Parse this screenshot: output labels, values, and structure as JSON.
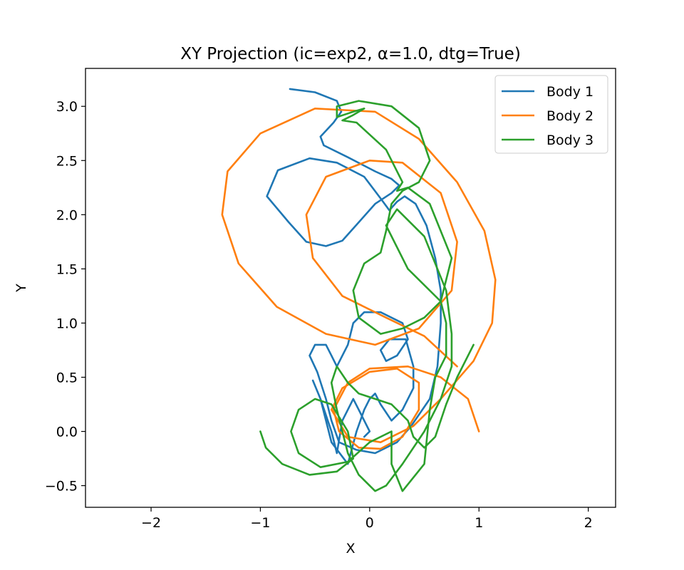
{
  "chart_data": {
    "type": "line",
    "title": "XY Projection (ic=exp2, α=1.0, dtg=True)",
    "xlabel": "X",
    "ylabel": "Y",
    "xlim": [
      -2.6,
      2.25
    ],
    "ylim": [
      -0.7,
      3.35
    ],
    "xticks": [
      -2,
      -1,
      0,
      1,
      2
    ],
    "xtick_labels": [
      "−2",
      "−1",
      "0",
      "1",
      "2"
    ],
    "yticks": [
      -0.5,
      0.0,
      0.5,
      1.0,
      1.5,
      2.0,
      2.5,
      3.0
    ],
    "ytick_labels": [
      "−0.5",
      "0.0",
      "0.5",
      "1.0",
      "1.5",
      "2.0",
      "2.5",
      "3.0"
    ],
    "grid": false,
    "legend_position": "top-right",
    "series": [
      {
        "name": "Body 1",
        "color": "#1f77b4",
        "points": [
          [
            -0.73,
            3.16
          ],
          [
            -0.5,
            3.13
          ],
          [
            -0.3,
            3.05
          ],
          [
            -0.26,
            2.95
          ],
          [
            -0.33,
            2.85
          ],
          [
            -0.45,
            2.72
          ],
          [
            -0.42,
            2.64
          ],
          [
            -0.2,
            2.53
          ],
          [
            0.05,
            2.4
          ],
          [
            0.2,
            2.33
          ],
          [
            0.27,
            2.27
          ],
          [
            0.2,
            2.2
          ],
          [
            0.05,
            2.1
          ],
          [
            -0.1,
            1.93
          ],
          [
            -0.25,
            1.76
          ],
          [
            -0.4,
            1.71
          ],
          [
            -0.58,
            1.75
          ],
          [
            -0.74,
            1.93
          ],
          [
            -0.94,
            2.17
          ],
          [
            -0.84,
            2.41
          ],
          [
            -0.55,
            2.52
          ],
          [
            -0.3,
            2.48
          ],
          [
            -0.05,
            2.35
          ],
          [
            0.1,
            2.15
          ],
          [
            0.18,
            2.04
          ],
          [
            0.25,
            2.12
          ],
          [
            0.32,
            2.17
          ],
          [
            0.42,
            2.1
          ],
          [
            0.52,
            1.9
          ],
          [
            0.6,
            1.6
          ],
          [
            0.65,
            1.3
          ],
          [
            0.65,
            1.0
          ],
          [
            0.62,
            0.6
          ],
          [
            0.55,
            0.3
          ],
          [
            0.38,
            0.05
          ],
          [
            0.25,
            -0.1
          ],
          [
            0.05,
            -0.2
          ],
          [
            -0.12,
            -0.17
          ],
          [
            -0.28,
            -0.1
          ],
          [
            -0.35,
            0.1
          ],
          [
            -0.4,
            0.3
          ],
          [
            -0.48,
            0.55
          ],
          [
            -0.55,
            0.7
          ],
          [
            -0.5,
            0.8
          ],
          [
            -0.4,
            0.8
          ],
          [
            -0.35,
            0.7
          ],
          [
            -0.3,
            0.6
          ],
          [
            -0.2,
            0.8
          ],
          [
            -0.15,
            1.0
          ],
          [
            -0.05,
            1.1
          ],
          [
            0.1,
            1.1
          ],
          [
            0.3,
            1.0
          ],
          [
            0.35,
            0.85
          ],
          [
            0.25,
            0.7
          ],
          [
            0.15,
            0.65
          ],
          [
            0.1,
            0.75
          ],
          [
            0.18,
            0.85
          ],
          [
            0.33,
            0.85
          ],
          [
            0.4,
            0.6
          ],
          [
            0.4,
            0.4
          ],
          [
            0.3,
            0.2
          ],
          [
            0.2,
            0.1
          ],
          [
            0.1,
            0.25
          ],
          [
            0.05,
            0.35
          ],
          [
            0.0,
            0.3
          ],
          [
            -0.05,
            0.2
          ],
          [
            -0.12,
            0.0
          ],
          [
            -0.2,
            -0.3
          ],
          [
            -0.35,
            -0.1
          ],
          [
            -0.45,
            0.3
          ],
          [
            -0.52,
            0.47
          ],
          [
            -0.45,
            0.3
          ],
          [
            -0.35,
            0.0
          ],
          [
            -0.3,
            -0.2
          ],
          [
            -0.25,
            0.1
          ],
          [
            -0.15,
            0.3
          ],
          [
            -0.1,
            0.2
          ],
          [
            0.0,
            0.0
          ],
          [
            -0.05,
            -0.05
          ],
          [
            0.0,
            0.0
          ]
        ]
      },
      {
        "name": "Body 2",
        "color": "#ff7f0e",
        "points": [
          [
            1.0,
            0.0
          ],
          [
            0.9,
            0.3
          ],
          [
            0.65,
            0.5
          ],
          [
            0.35,
            0.6
          ],
          [
            0.0,
            0.58
          ],
          [
            -0.2,
            0.45
          ],
          [
            -0.33,
            0.2
          ],
          [
            -0.28,
            0.0
          ],
          [
            -0.1,
            -0.15
          ],
          [
            0.1,
            -0.16
          ],
          [
            0.3,
            -0.05
          ],
          [
            0.45,
            0.2
          ],
          [
            0.45,
            0.45
          ],
          [
            0.25,
            0.58
          ],
          [
            0.0,
            0.55
          ],
          [
            -0.25,
            0.4
          ],
          [
            -0.35,
            0.2
          ],
          [
            -0.2,
            -0.05
          ],
          [
            0.1,
            -0.1
          ],
          [
            0.4,
            0.05
          ],
          [
            0.65,
            0.3
          ],
          [
            0.95,
            0.65
          ],
          [
            1.12,
            1.0
          ],
          [
            1.15,
            1.4
          ],
          [
            1.05,
            1.85
          ],
          [
            0.8,
            2.3
          ],
          [
            0.45,
            2.7
          ],
          [
            0.05,
            2.95
          ],
          [
            -0.5,
            2.98
          ],
          [
            -1.0,
            2.75
          ],
          [
            -1.3,
            2.4
          ],
          [
            -1.35,
            2.0
          ],
          [
            -1.2,
            1.55
          ],
          [
            -0.85,
            1.15
          ],
          [
            -0.4,
            0.9
          ],
          [
            0.05,
            0.8
          ],
          [
            0.45,
            0.95
          ],
          [
            0.75,
            1.3
          ],
          [
            0.8,
            1.75
          ],
          [
            0.65,
            2.2
          ],
          [
            0.3,
            2.48
          ],
          [
            0.0,
            2.5
          ],
          [
            -0.4,
            2.35
          ],
          [
            -0.58,
            2.0
          ],
          [
            -0.52,
            1.6
          ],
          [
            -0.25,
            1.25
          ],
          [
            0.15,
            1.05
          ],
          [
            0.5,
            0.88
          ],
          [
            0.8,
            0.6
          ]
        ]
      },
      {
        "name": "Body 3",
        "color": "#2ca02c",
        "points": [
          [
            -1.0,
            0.0
          ],
          [
            -0.95,
            -0.15
          ],
          [
            -0.8,
            -0.3
          ],
          [
            -0.55,
            -0.4
          ],
          [
            -0.3,
            -0.37
          ],
          [
            -0.15,
            -0.25
          ],
          [
            -0.2,
            0.0
          ],
          [
            -0.35,
            0.25
          ],
          [
            -0.5,
            0.3
          ],
          [
            -0.65,
            0.2
          ],
          [
            -0.72,
            0.0
          ],
          [
            -0.65,
            -0.2
          ],
          [
            -0.45,
            -0.33
          ],
          [
            -0.2,
            -0.28
          ],
          [
            0.0,
            -0.1
          ],
          [
            0.2,
            0.0
          ],
          [
            0.2,
            -0.3
          ],
          [
            0.3,
            -0.55
          ],
          [
            0.5,
            -0.3
          ],
          [
            0.55,
            0.2
          ],
          [
            0.6,
            0.5
          ],
          [
            0.7,
            0.7
          ],
          [
            0.7,
            1.0
          ],
          [
            0.65,
            1.2
          ],
          [
            0.5,
            1.05
          ],
          [
            0.3,
            0.95
          ],
          [
            0.1,
            0.9
          ],
          [
            -0.1,
            1.05
          ],
          [
            -0.15,
            1.3
          ],
          [
            -0.05,
            1.55
          ],
          [
            0.1,
            1.65
          ],
          [
            0.15,
            1.85
          ],
          [
            0.2,
            2.1
          ],
          [
            0.3,
            2.22
          ],
          [
            0.45,
            2.3
          ],
          [
            0.55,
            2.5
          ],
          [
            0.45,
            2.8
          ],
          [
            0.2,
            3.0
          ],
          [
            -0.1,
            3.05
          ],
          [
            -0.3,
            3.0
          ],
          [
            -0.3,
            2.9
          ],
          [
            -0.15,
            2.95
          ],
          [
            -0.05,
            2.98
          ],
          [
            -0.15,
            2.92
          ],
          [
            -0.25,
            2.87
          ],
          [
            -0.12,
            2.85
          ],
          [
            0.15,
            2.6
          ],
          [
            0.3,
            2.3
          ],
          [
            0.25,
            2.22
          ],
          [
            0.35,
            2.25
          ],
          [
            0.55,
            2.1
          ],
          [
            0.75,
            1.6
          ],
          [
            0.65,
            1.2
          ],
          [
            0.35,
            1.5
          ],
          [
            0.15,
            1.9
          ],
          [
            0.25,
            2.05
          ],
          [
            0.5,
            1.8
          ],
          [
            0.7,
            1.3
          ],
          [
            0.75,
            0.9
          ],
          [
            0.75,
            0.6
          ],
          [
            0.65,
            0.3
          ],
          [
            0.5,
            0.0
          ],
          [
            0.3,
            -0.3
          ],
          [
            0.15,
            -0.5
          ],
          [
            0.05,
            -0.55
          ],
          [
            -0.1,
            -0.4
          ],
          [
            -0.2,
            -0.2
          ],
          [
            -0.3,
            0.2
          ],
          [
            -0.35,
            0.45
          ],
          [
            -0.3,
            0.6
          ],
          [
            -0.2,
            0.45
          ],
          [
            -0.1,
            0.35
          ],
          [
            0.05,
            0.3
          ],
          [
            0.2,
            0.25
          ],
          [
            0.35,
            0.1
          ],
          [
            0.4,
            -0.05
          ],
          [
            0.5,
            -0.15
          ],
          [
            0.6,
            -0.05
          ],
          [
            0.7,
            0.25
          ],
          [
            0.8,
            0.5
          ],
          [
            0.95,
            0.8
          ]
        ]
      }
    ]
  }
}
